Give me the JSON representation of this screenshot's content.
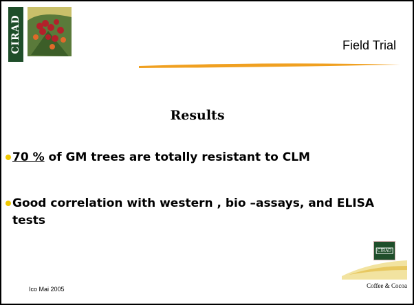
{
  "header": {
    "logo_text": "CIRAD",
    "title": "Field Trial"
  },
  "slide": {
    "heading": "Results",
    "bullets": [
      {
        "emphasis": "70 %",
        "text": " of GM trees are totally resistant to CLM"
      },
      {
        "text": "Good correlation with western , bio –assays, and ELISA tests"
      }
    ]
  },
  "footer": {
    "left": "Ico Mai 2005",
    "logo_text": "CIRAD",
    "right": "Coffee & Cocoa"
  }
}
